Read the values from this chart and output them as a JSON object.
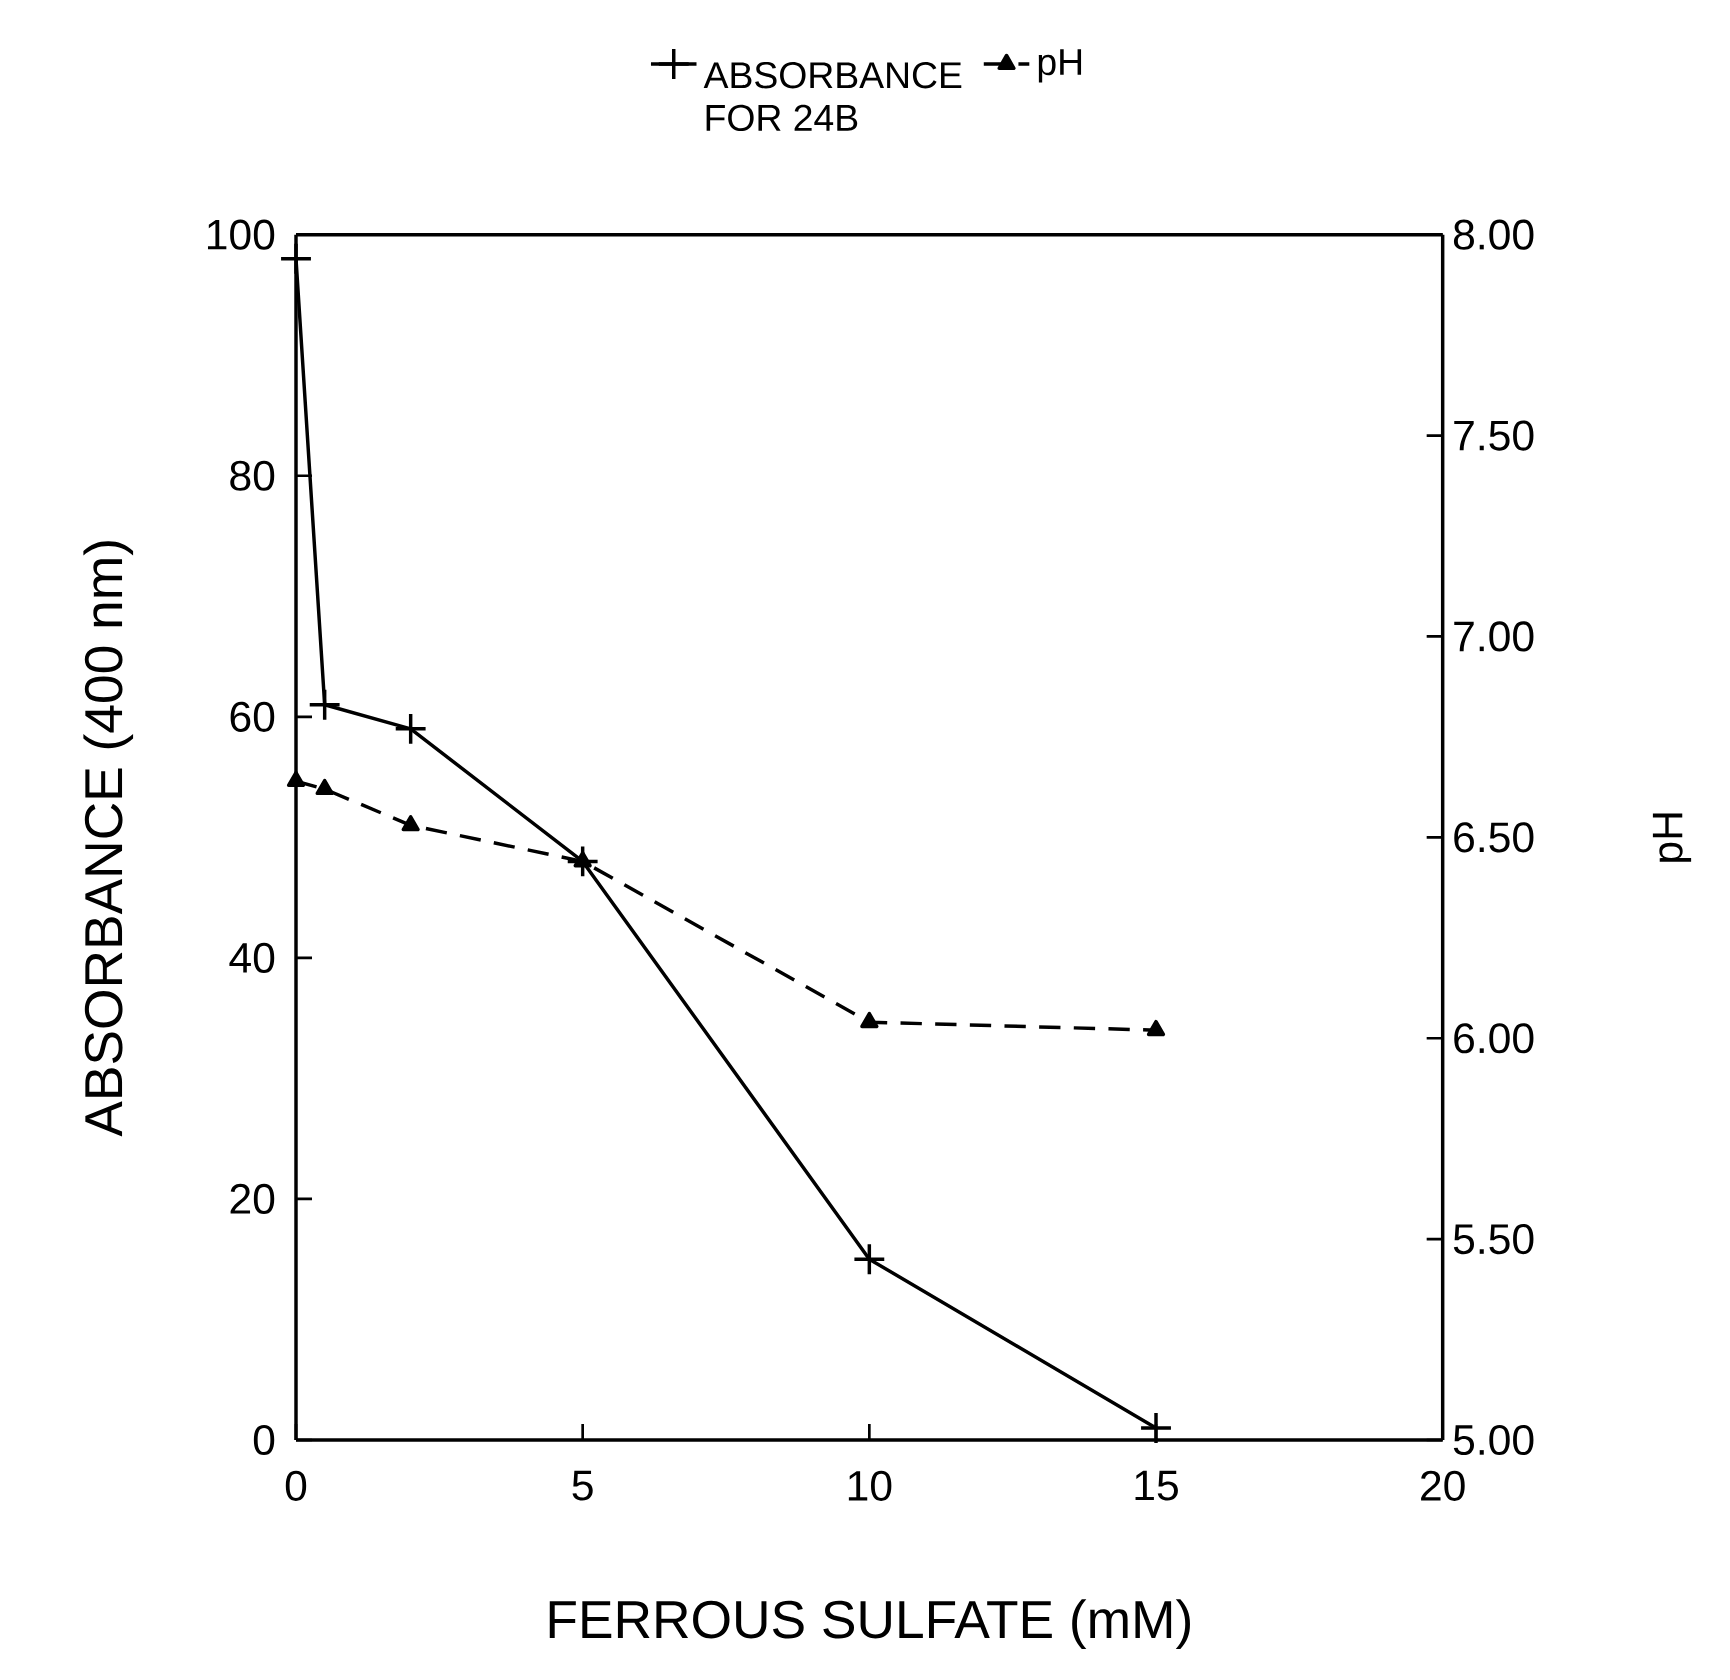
{
  "chart_data": {
    "type": "line",
    "xlabel": "FERROUS SULFATE (mM)",
    "ylabel": "ABSORBANCE (400 nm)",
    "y2label": "pH",
    "x": [
      0,
      0.5,
      2,
      5,
      10,
      15
    ],
    "series": [
      {
        "name": "ABSORBANCE FOR 24B",
        "color": "#000000",
        "values": [
          98,
          61,
          59,
          48,
          15,
          1
        ],
        "marker": "cross",
        "line_style": "solid"
      },
      {
        "name": "pH",
        "color": "#000000",
        "axis": "y2",
        "values": [
          6.64,
          6.62,
          6.53,
          6.44,
          6.04,
          6.02
        ],
        "marker": "triangle",
        "line_style": "dashed"
      }
    ],
    "xlim": [
      0,
      20
    ],
    "xticks": [
      0,
      5,
      10,
      15,
      20
    ],
    "ylim": [
      0,
      100
    ],
    "yticks": [
      0,
      20,
      40,
      60,
      80,
      100
    ],
    "y2lim": [
      5,
      8
    ],
    "y2ticks": [
      {
        "value": 5,
        "label": "5.00"
      },
      {
        "value": 5.5,
        "label": "5.50"
      },
      {
        "value": 6,
        "label": "6.00"
      },
      {
        "value": 6.5,
        "label": "6.50"
      },
      {
        "value": 7,
        "label": "7.00"
      },
      {
        "value": 7.5,
        "label": "7.50"
      },
      {
        "value": 8,
        "label": "8.00"
      }
    ],
    "grid": false,
    "legend": "top"
  }
}
